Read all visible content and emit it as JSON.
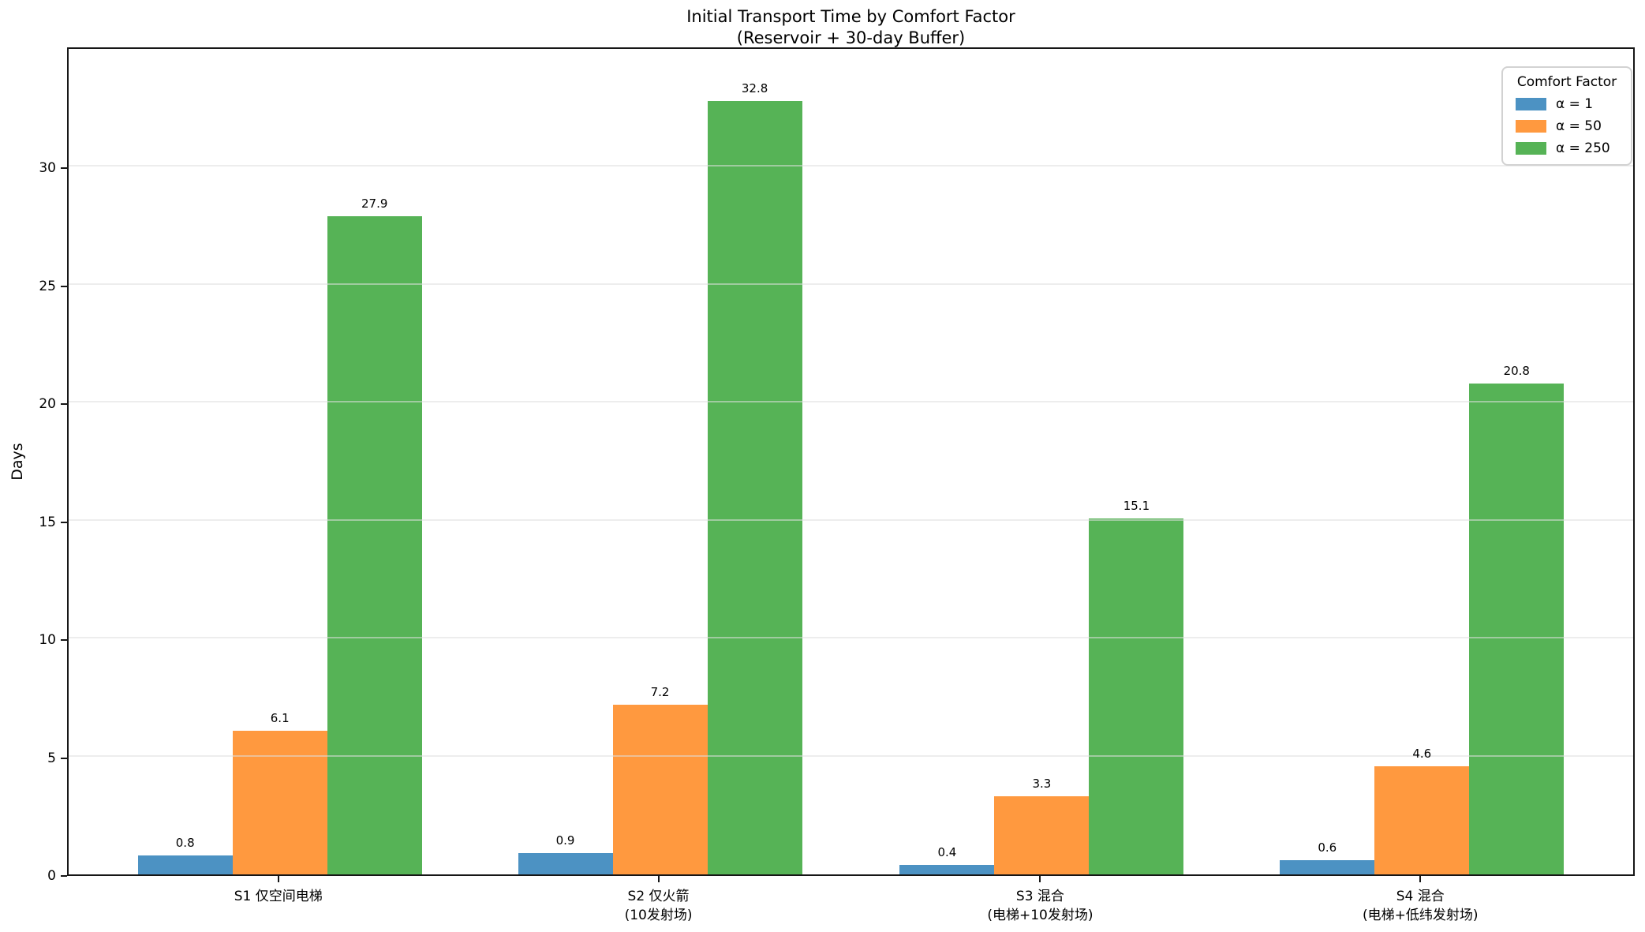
{
  "chart_data": {
    "type": "bar",
    "title": "Initial Transport Time by Comfort Factor",
    "subtitle": "(Reservoir + 30-day Buffer)",
    "xlabel": "",
    "ylabel": "Days",
    "ylim": [
      0,
      35
    ],
    "yticks": [
      0,
      5,
      10,
      15,
      20,
      25,
      30
    ],
    "grid": true,
    "grid_color": "#ebebeb",
    "legend_title": "Comfort Factor",
    "legend_position": "upper right",
    "bar_value_labels": true,
    "categories": [
      "S1 仅空间电梯",
      "S2 仅火箭\n(10发射场)",
      "S3 混合\n(电梯+10发射场)",
      "S4 混合\n(电梯+低纬发射场)"
    ],
    "category_label_lines": [
      [
        "S1 仅空间电梯"
      ],
      [
        "S2 仅火箭",
        "(10发射场)"
      ],
      [
        "S3 混合",
        "(电梯+10发射场)"
      ],
      [
        "S4 混合",
        "(电梯+低纬发射场)"
      ]
    ],
    "series": [
      {
        "name": "α = 1",
        "color": "#4c92c3",
        "values": [
          0.8,
          0.9,
          0.4,
          0.6
        ]
      },
      {
        "name": "α = 50",
        "color": "#ff993f",
        "values": [
          6.1,
          7.2,
          3.3,
          4.6
        ]
      },
      {
        "name": "α = 250",
        "color": "#56b356",
        "values": [
          27.9,
          32.8,
          15.1,
          20.8
        ]
      }
    ]
  }
}
